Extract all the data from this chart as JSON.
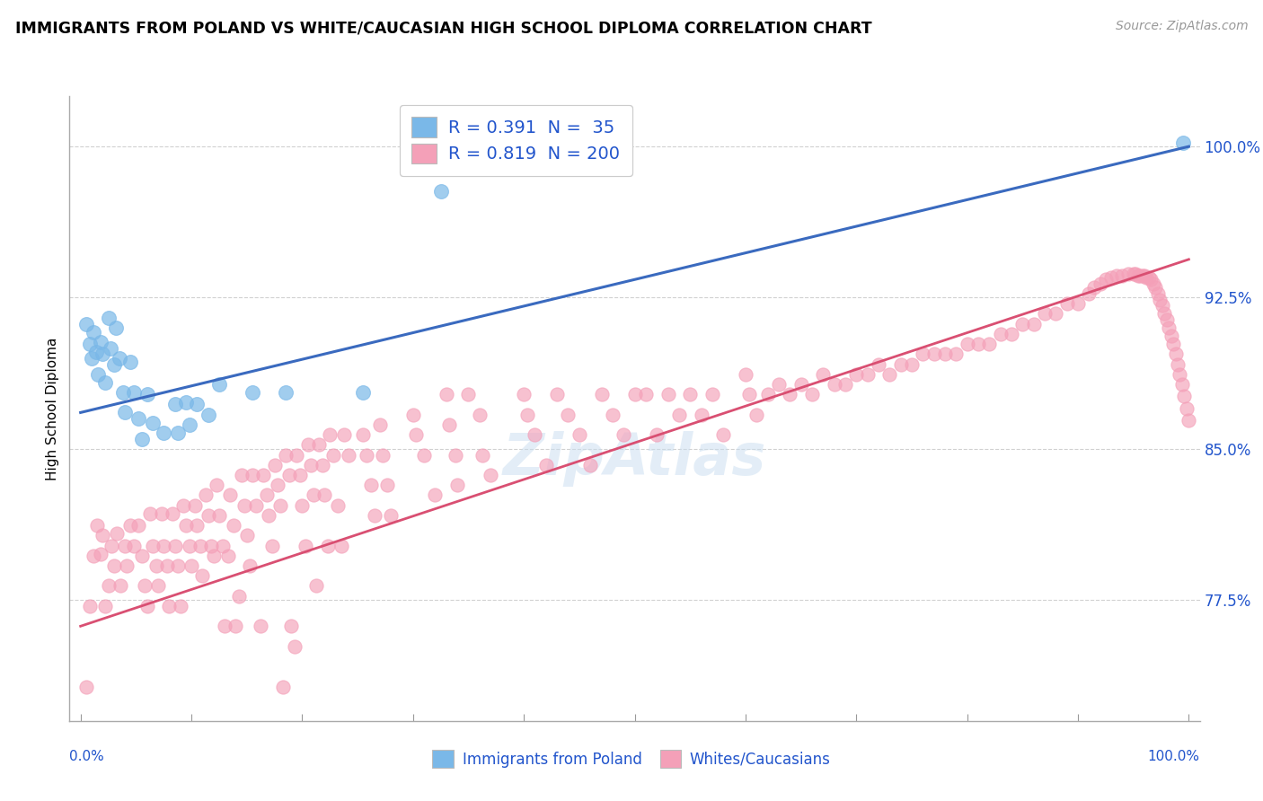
{
  "title": "IMMIGRANTS FROM POLAND VS WHITE/CAUCASIAN HIGH SCHOOL DIPLOMA CORRELATION CHART",
  "source": "Source: ZipAtlas.com",
  "ylabel": "High School Diploma",
  "ytick_labels": [
    "77.5%",
    "85.0%",
    "92.5%",
    "100.0%"
  ],
  "ytick_values": [
    0.775,
    0.85,
    0.925,
    1.0
  ],
  "xlim": [
    -0.01,
    1.01
  ],
  "ylim": [
    0.715,
    1.025
  ],
  "legend_label_blue": "Immigrants from Poland",
  "legend_label_pink": "Whites/Caucasians",
  "r_blue": 0.391,
  "n_blue": 35,
  "r_pink": 0.819,
  "n_pink": 200,
  "blue_color": "#7ab8e8",
  "pink_color": "#f4a0b8",
  "line_blue": "#3a6abf",
  "line_pink": "#d94f72",
  "text_color": "#2255cc",
  "blue_line_start": 0.868,
  "blue_line_end": 1.0,
  "pink_line_start": 0.762,
  "pink_line_end": 0.944,
  "blue_scatter": [
    [
      0.005,
      0.912
    ],
    [
      0.008,
      0.902
    ],
    [
      0.01,
      0.895
    ],
    [
      0.012,
      0.908
    ],
    [
      0.014,
      0.898
    ],
    [
      0.016,
      0.887
    ],
    [
      0.018,
      0.903
    ],
    [
      0.02,
      0.897
    ],
    [
      0.022,
      0.883
    ],
    [
      0.025,
      0.915
    ],
    [
      0.027,
      0.9
    ],
    [
      0.03,
      0.892
    ],
    [
      0.032,
      0.91
    ],
    [
      0.035,
      0.895
    ],
    [
      0.038,
      0.878
    ],
    [
      0.04,
      0.868
    ],
    [
      0.045,
      0.893
    ],
    [
      0.048,
      0.878
    ],
    [
      0.052,
      0.865
    ],
    [
      0.055,
      0.855
    ],
    [
      0.06,
      0.877
    ],
    [
      0.065,
      0.863
    ],
    [
      0.075,
      0.858
    ],
    [
      0.085,
      0.872
    ],
    [
      0.088,
      0.858
    ],
    [
      0.095,
      0.873
    ],
    [
      0.098,
      0.862
    ],
    [
      0.105,
      0.872
    ],
    [
      0.115,
      0.867
    ],
    [
      0.125,
      0.882
    ],
    [
      0.155,
      0.878
    ],
    [
      0.185,
      0.878
    ],
    [
      0.255,
      0.878
    ],
    [
      0.325,
      0.978
    ],
    [
      0.995,
      1.002
    ]
  ],
  "pink_scatter": [
    [
      0.005,
      0.732
    ],
    [
      0.008,
      0.772
    ],
    [
      0.012,
      0.797
    ],
    [
      0.015,
      0.812
    ],
    [
      0.018,
      0.798
    ],
    [
      0.02,
      0.807
    ],
    [
      0.022,
      0.772
    ],
    [
      0.025,
      0.782
    ],
    [
      0.028,
      0.802
    ],
    [
      0.03,
      0.792
    ],
    [
      0.033,
      0.808
    ],
    [
      0.036,
      0.782
    ],
    [
      0.04,
      0.802
    ],
    [
      0.042,
      0.792
    ],
    [
      0.045,
      0.812
    ],
    [
      0.048,
      0.802
    ],
    [
      0.052,
      0.812
    ],
    [
      0.055,
      0.797
    ],
    [
      0.058,
      0.782
    ],
    [
      0.06,
      0.772
    ],
    [
      0.063,
      0.818
    ],
    [
      0.065,
      0.802
    ],
    [
      0.068,
      0.792
    ],
    [
      0.07,
      0.782
    ],
    [
      0.073,
      0.818
    ],
    [
      0.075,
      0.802
    ],
    [
      0.078,
      0.792
    ],
    [
      0.08,
      0.772
    ],
    [
      0.083,
      0.818
    ],
    [
      0.085,
      0.802
    ],
    [
      0.088,
      0.792
    ],
    [
      0.09,
      0.772
    ],
    [
      0.093,
      0.822
    ],
    [
      0.095,
      0.812
    ],
    [
      0.098,
      0.802
    ],
    [
      0.1,
      0.792
    ],
    [
      0.103,
      0.822
    ],
    [
      0.105,
      0.812
    ],
    [
      0.108,
      0.802
    ],
    [
      0.11,
      0.787
    ],
    [
      0.113,
      0.827
    ],
    [
      0.115,
      0.817
    ],
    [
      0.118,
      0.802
    ],
    [
      0.12,
      0.797
    ],
    [
      0.123,
      0.832
    ],
    [
      0.125,
      0.817
    ],
    [
      0.128,
      0.802
    ],
    [
      0.13,
      0.762
    ],
    [
      0.133,
      0.797
    ],
    [
      0.135,
      0.827
    ],
    [
      0.138,
      0.812
    ],
    [
      0.14,
      0.762
    ],
    [
      0.143,
      0.777
    ],
    [
      0.145,
      0.837
    ],
    [
      0.148,
      0.822
    ],
    [
      0.15,
      0.807
    ],
    [
      0.153,
      0.792
    ],
    [
      0.155,
      0.837
    ],
    [
      0.158,
      0.822
    ],
    [
      0.162,
      0.762
    ],
    [
      0.165,
      0.837
    ],
    [
      0.168,
      0.827
    ],
    [
      0.17,
      0.817
    ],
    [
      0.173,
      0.802
    ],
    [
      0.175,
      0.842
    ],
    [
      0.178,
      0.832
    ],
    [
      0.18,
      0.822
    ],
    [
      0.183,
      0.732
    ],
    [
      0.185,
      0.847
    ],
    [
      0.188,
      0.837
    ],
    [
      0.19,
      0.762
    ],
    [
      0.193,
      0.752
    ],
    [
      0.195,
      0.847
    ],
    [
      0.198,
      0.837
    ],
    [
      0.2,
      0.822
    ],
    [
      0.203,
      0.802
    ],
    [
      0.205,
      0.852
    ],
    [
      0.208,
      0.842
    ],
    [
      0.21,
      0.827
    ],
    [
      0.213,
      0.782
    ],
    [
      0.215,
      0.852
    ],
    [
      0.218,
      0.842
    ],
    [
      0.22,
      0.827
    ],
    [
      0.223,
      0.802
    ],
    [
      0.225,
      0.857
    ],
    [
      0.228,
      0.847
    ],
    [
      0.232,
      0.822
    ],
    [
      0.235,
      0.802
    ],
    [
      0.238,
      0.857
    ],
    [
      0.242,
      0.847
    ],
    [
      0.255,
      0.857
    ],
    [
      0.258,
      0.847
    ],
    [
      0.262,
      0.832
    ],
    [
      0.265,
      0.817
    ],
    [
      0.27,
      0.862
    ],
    [
      0.273,
      0.847
    ],
    [
      0.277,
      0.832
    ],
    [
      0.28,
      0.817
    ],
    [
      0.3,
      0.867
    ],
    [
      0.303,
      0.857
    ],
    [
      0.31,
      0.847
    ],
    [
      0.32,
      0.827
    ],
    [
      0.33,
      0.877
    ],
    [
      0.333,
      0.862
    ],
    [
      0.338,
      0.847
    ],
    [
      0.34,
      0.832
    ],
    [
      0.35,
      0.877
    ],
    [
      0.36,
      0.867
    ],
    [
      0.363,
      0.847
    ],
    [
      0.37,
      0.837
    ],
    [
      0.4,
      0.877
    ],
    [
      0.403,
      0.867
    ],
    [
      0.41,
      0.857
    ],
    [
      0.42,
      0.842
    ],
    [
      0.43,
      0.877
    ],
    [
      0.44,
      0.867
    ],
    [
      0.45,
      0.857
    ],
    [
      0.46,
      0.842
    ],
    [
      0.47,
      0.877
    ],
    [
      0.48,
      0.867
    ],
    [
      0.49,
      0.857
    ],
    [
      0.5,
      0.877
    ],
    [
      0.51,
      0.877
    ],
    [
      0.52,
      0.857
    ],
    [
      0.53,
      0.877
    ],
    [
      0.54,
      0.867
    ],
    [
      0.55,
      0.877
    ],
    [
      0.56,
      0.867
    ],
    [
      0.57,
      0.877
    ],
    [
      0.58,
      0.857
    ],
    [
      0.6,
      0.887
    ],
    [
      0.603,
      0.877
    ],
    [
      0.61,
      0.867
    ],
    [
      0.62,
      0.877
    ],
    [
      0.63,
      0.882
    ],
    [
      0.64,
      0.877
    ],
    [
      0.65,
      0.882
    ],
    [
      0.66,
      0.877
    ],
    [
      0.67,
      0.887
    ],
    [
      0.68,
      0.882
    ],
    [
      0.69,
      0.882
    ],
    [
      0.7,
      0.887
    ],
    [
      0.71,
      0.887
    ],
    [
      0.72,
      0.892
    ],
    [
      0.73,
      0.887
    ],
    [
      0.74,
      0.892
    ],
    [
      0.75,
      0.892
    ],
    [
      0.76,
      0.897
    ],
    [
      0.77,
      0.897
    ],
    [
      0.78,
      0.897
    ],
    [
      0.79,
      0.897
    ],
    [
      0.8,
      0.902
    ],
    [
      0.81,
      0.902
    ],
    [
      0.82,
      0.902
    ],
    [
      0.83,
      0.907
    ],
    [
      0.84,
      0.907
    ],
    [
      0.85,
      0.912
    ],
    [
      0.86,
      0.912
    ],
    [
      0.87,
      0.917
    ],
    [
      0.88,
      0.917
    ],
    [
      0.89,
      0.922
    ],
    [
      0.9,
      0.922
    ],
    [
      0.91,
      0.927
    ],
    [
      0.915,
      0.93
    ],
    [
      0.92,
      0.932
    ],
    [
      0.925,
      0.934
    ],
    [
      0.93,
      0.935
    ],
    [
      0.935,
      0.936
    ],
    [
      0.94,
      0.936
    ],
    [
      0.945,
      0.937
    ],
    [
      0.95,
      0.937
    ],
    [
      0.952,
      0.937
    ],
    [
      0.954,
      0.936
    ],
    [
      0.956,
      0.936
    ],
    [
      0.958,
      0.936
    ],
    [
      0.96,
      0.936
    ],
    [
      0.962,
      0.935
    ],
    [
      0.964,
      0.935
    ],
    [
      0.966,
      0.934
    ],
    [
      0.968,
      0.932
    ],
    [
      0.97,
      0.93
    ],
    [
      0.972,
      0.927
    ],
    [
      0.974,
      0.924
    ],
    [
      0.976,
      0.921
    ],
    [
      0.978,
      0.917
    ],
    [
      0.98,
      0.914
    ],
    [
      0.982,
      0.91
    ],
    [
      0.984,
      0.906
    ],
    [
      0.986,
      0.902
    ],
    [
      0.988,
      0.897
    ],
    [
      0.99,
      0.892
    ],
    [
      0.992,
      0.887
    ],
    [
      0.994,
      0.882
    ],
    [
      0.996,
      0.876
    ],
    [
      0.998,
      0.87
    ],
    [
      1.0,
      0.864
    ]
  ]
}
